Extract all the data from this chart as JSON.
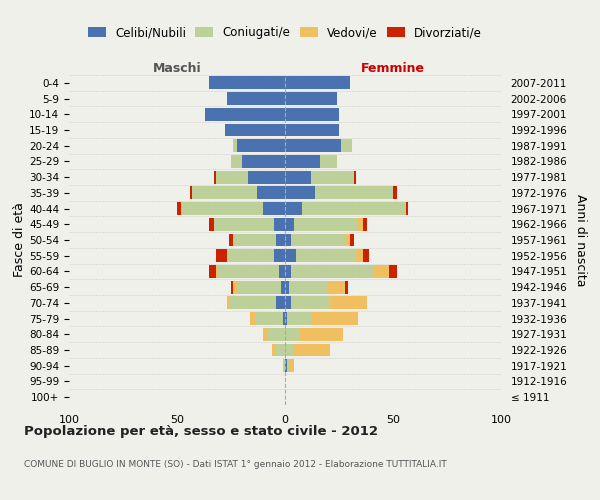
{
  "age_groups": [
    "100+",
    "95-99",
    "90-94",
    "85-89",
    "80-84",
    "75-79",
    "70-74",
    "65-69",
    "60-64",
    "55-59",
    "50-54",
    "45-49",
    "40-44",
    "35-39",
    "30-34",
    "25-29",
    "20-24",
    "15-19",
    "10-14",
    "5-9",
    "0-4"
  ],
  "birth_years": [
    "≤ 1911",
    "1912-1916",
    "1917-1921",
    "1922-1926",
    "1927-1931",
    "1932-1936",
    "1937-1941",
    "1942-1946",
    "1947-1951",
    "1952-1956",
    "1957-1961",
    "1962-1966",
    "1967-1971",
    "1972-1976",
    "1977-1981",
    "1982-1986",
    "1987-1991",
    "1992-1996",
    "1997-2001",
    "2002-2006",
    "2007-2011"
  ],
  "male_celibi": [
    0,
    0,
    0,
    0,
    0,
    1,
    4,
    2,
    3,
    5,
    4,
    5,
    10,
    13,
    17,
    20,
    22,
    28,
    37,
    27,
    35
  ],
  "male_coniugati": [
    0,
    0,
    1,
    4,
    8,
    13,
    22,
    20,
    28,
    22,
    20,
    28,
    38,
    30,
    15,
    5,
    2,
    0,
    0,
    0,
    0
  ],
  "male_vedovi": [
    0,
    0,
    0,
    2,
    2,
    2,
    1,
    2,
    1,
    0,
    0,
    0,
    0,
    0,
    0,
    0,
    0,
    0,
    0,
    0,
    0
  ],
  "male_divorziati": [
    0,
    0,
    0,
    0,
    0,
    0,
    0,
    1,
    3,
    5,
    2,
    2,
    2,
    1,
    1,
    0,
    0,
    0,
    0,
    0,
    0
  ],
  "female_nubili": [
    0,
    0,
    1,
    0,
    0,
    1,
    3,
    2,
    3,
    5,
    3,
    4,
    8,
    14,
    12,
    16,
    26,
    25,
    25,
    24,
    30
  ],
  "female_coniugate": [
    0,
    0,
    1,
    4,
    7,
    11,
    18,
    18,
    38,
    28,
    25,
    30,
    48,
    36,
    20,
    8,
    5,
    0,
    0,
    0,
    0
  ],
  "female_vedove": [
    0,
    0,
    2,
    17,
    20,
    22,
    17,
    8,
    7,
    3,
    2,
    2,
    0,
    0,
    0,
    0,
    0,
    0,
    0,
    0,
    0
  ],
  "female_divorziate": [
    0,
    0,
    0,
    0,
    0,
    0,
    0,
    1,
    4,
    3,
    2,
    2,
    1,
    2,
    1,
    0,
    0,
    0,
    0,
    0,
    0
  ],
  "color_celibi": "#4a72b0",
  "color_coniugati": "#bdd099",
  "color_vedovi": "#f0c060",
  "color_divorziati": "#cc2200",
  "xlim_min": -100,
  "xlim_max": 100,
  "xticks": [
    -100,
    -50,
    0,
    50,
    100
  ],
  "xticklabels": [
    "100",
    "50",
    "0",
    "50",
    "100"
  ],
  "title": "Popolazione per età, sesso e stato civile - 2012",
  "subtitle": "COMUNE DI BUGLIO IN MONTE (SO) - Dati ISTAT 1° gennaio 2012 - Elaborazione TUTTITALIA.IT",
  "ylabel_left": "Fasce di età",
  "ylabel_right": "Anni di nascita",
  "label_maschi": "Maschi",
  "label_femmine": "Femmine",
  "legend_labels": [
    "Celibi/Nubili",
    "Coniugati/e",
    "Vedovi/e",
    "Divorziati/e"
  ],
  "bg_color": "#f0f0eb"
}
